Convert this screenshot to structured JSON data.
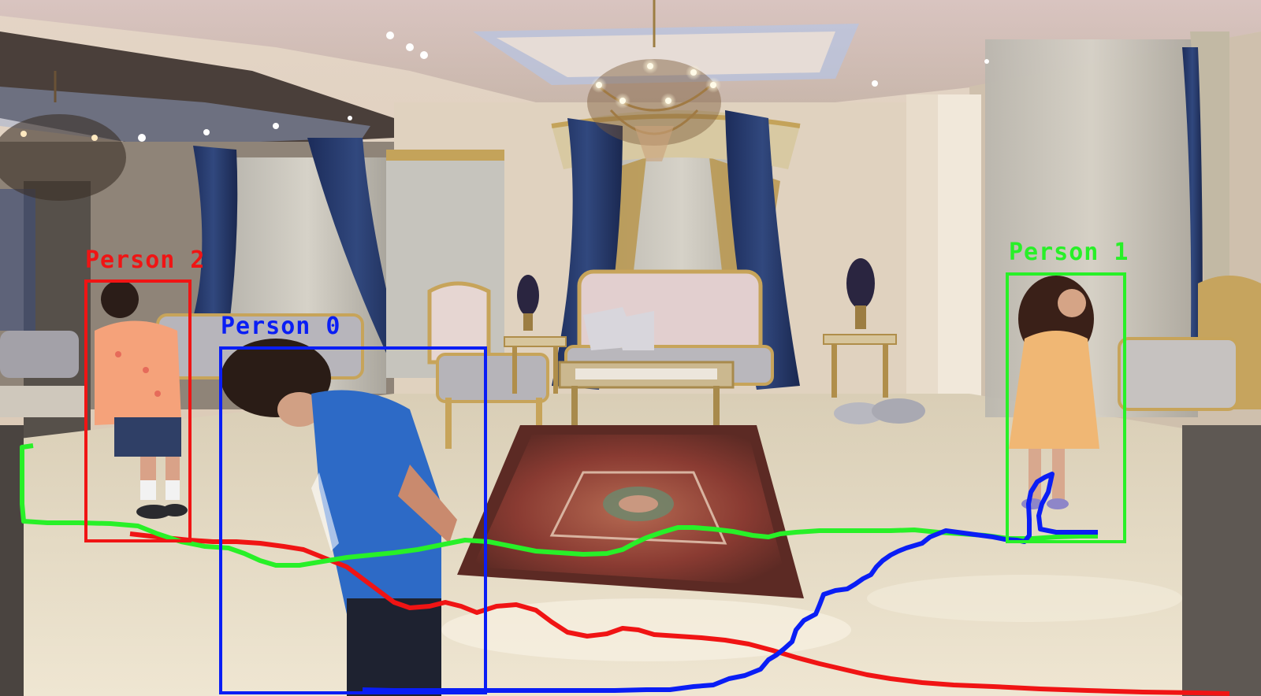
{
  "colors": {
    "person_0": "#0a1ef5",
    "person_1": "#28f028",
    "person_2": "#f01414"
  },
  "detections": [
    {
      "id": "person-0",
      "label": "Person 0",
      "color_key": "person_0"
    },
    {
      "id": "person-1",
      "label": "Person 1",
      "color_key": "person_1"
    },
    {
      "id": "person-2",
      "label": "Person 2",
      "color_key": "person_2"
    }
  ]
}
